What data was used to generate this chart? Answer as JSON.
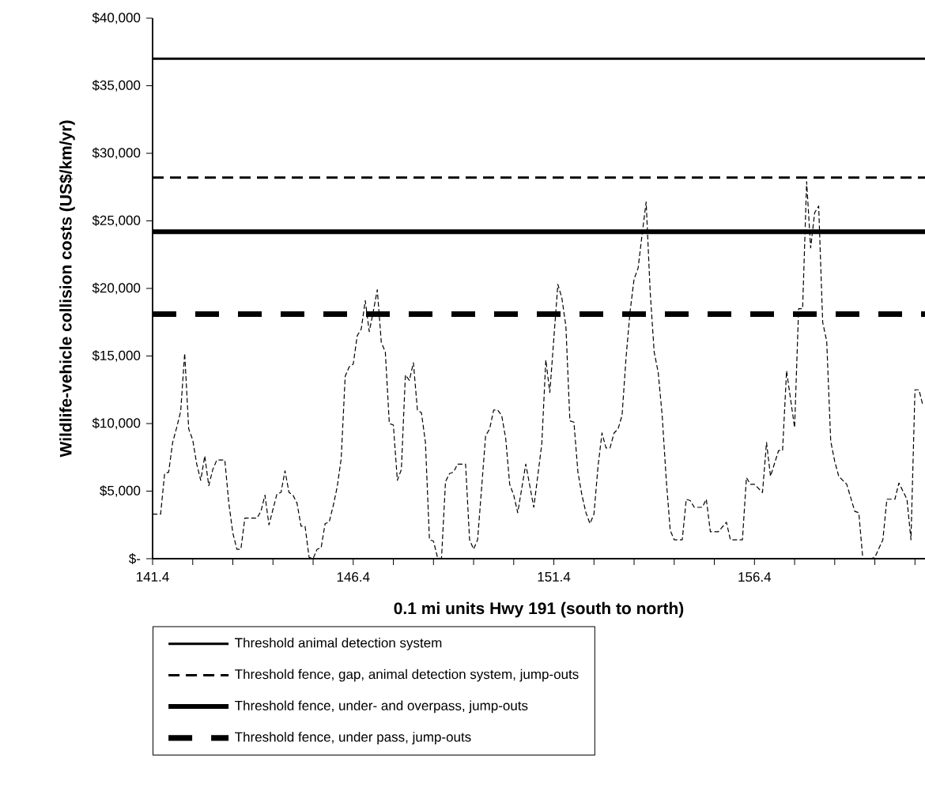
{
  "chart_data": {
    "type": "line",
    "xlabel": "0.1 mi units Hwy 191 (south to north)",
    "ylabel": "Wildlife-vehicle collision costs (US$/km/yr)",
    "xlim": [
      141.4,
      160.65
    ],
    "ylim": [
      0,
      40000
    ],
    "xticks": [
      141.4,
      {
        "value": 142.4,
        "label": null
      },
      {
        "value": 143.4,
        "label": null
      },
      {
        "value": 144.4,
        "label": null
      },
      {
        "value": 145.4,
        "label": null
      },
      146.4,
      {
        "value": 147.4,
        "label": null
      },
      {
        "value": 148.4,
        "label": null
      },
      {
        "value": 149.4,
        "label": null
      },
      {
        "value": 150.4,
        "label": null
      },
      151.4,
      {
        "value": 152.4,
        "label": null
      },
      {
        "value": 153.4,
        "label": null
      },
      {
        "value": 154.4,
        "label": null
      },
      {
        "value": 155.4,
        "label": null
      },
      156.4,
      {
        "value": 157.4,
        "label": null
      },
      {
        "value": 158.4,
        "label": null
      },
      {
        "value": 159.4,
        "label": null
      },
      {
        "value": 160.4,
        "label": null
      }
    ],
    "yticks": [
      {
        "value": 0,
        "label": "$-"
      },
      {
        "value": 5000,
        "label": "$5,000"
      },
      {
        "value": 10000,
        "label": "$10,000"
      },
      {
        "value": 15000,
        "label": "$15,000"
      },
      {
        "value": 20000,
        "label": "$20,000"
      },
      {
        "value": 25000,
        "label": "$25,000"
      },
      {
        "value": 30000,
        "label": "$30,000"
      },
      {
        "value": 35000,
        "label": "$35,000"
      },
      {
        "value": 40000,
        "label": "$40,000"
      }
    ],
    "legend": "bottom",
    "marker": "none",
    "grid": false,
    "series": [
      {
        "color": "#000000",
        "line_style": "dashed",
        "x": [
          141.4,
          141.6,
          141.7,
          141.8,
          141.9,
          142.0,
          142.1,
          142.2,
          142.3,
          142.4,
          142.5,
          142.6,
          142.7,
          142.8,
          142.9,
          143.0,
          143.2,
          143.3,
          143.4,
          143.5,
          143.6,
          143.7,
          144.0,
          144.1,
          144.2,
          144.3,
          144.5,
          144.6,
          144.7,
          144.8,
          144.9,
          145.0,
          145.1,
          145.2,
          145.3,
          145.4,
          145.5,
          145.6,
          145.7,
          145.8,
          145.9,
          146.0,
          146.1,
          146.2,
          146.3,
          146.4,
          146.5,
          146.6,
          146.7,
          146.8,
          146.9,
          147.0,
          147.1,
          147.2,
          147.3,
          147.4,
          147.5,
          147.6,
          147.7,
          147.8,
          147.9,
          148.0,
          148.1,
          148.2,
          148.3,
          148.4,
          148.5,
          148.6,
          148.7,
          148.8,
          148.9,
          149.0,
          149.2,
          149.3,
          149.4,
          149.5,
          149.7,
          149.8,
          149.9,
          150.0,
          150.1,
          150.2,
          150.3,
          150.4,
          150.5,
          150.7,
          150.9,
          151.1,
          151.2,
          151.3,
          151.5,
          151.6,
          151.7,
          151.8,
          151.9,
          152.0,
          152.1,
          152.2,
          152.3,
          152.4,
          152.5,
          152.6,
          152.7,
          152.8,
          152.9,
          153.0,
          153.1,
          153.2,
          153.3,
          153.4,
          153.5,
          153.6,
          153.7,
          153.8,
          153.9,
          154.0,
          154.1,
          154.2,
          154.3,
          154.4,
          154.6,
          154.7,
          154.8,
          154.9,
          155.1,
          155.2,
          155.3,
          155.5,
          155.7,
          155.8,
          156.1,
          156.2,
          156.3,
          156.4,
          156.6,
          156.7,
          156.8,
          157.0,
          157.1,
          157.2,
          157.4,
          157.5,
          157.6,
          157.7,
          157.8,
          157.9,
          158.0,
          158.1,
          158.2,
          158.3,
          158.4,
          158.5,
          158.6,
          158.7,
          158.9,
          159.0,
          159.1,
          159.3,
          159.4,
          159.6,
          159.7,
          159.9,
          160.0,
          160.2,
          160.3,
          160.4,
          160.5,
          160.6
        ],
        "values": [
          3300,
          3300,
          6300,
          6400,
          8600,
          9700,
          10900,
          15200,
          9600,
          8800,
          7000,
          5800,
          7600,
          5400,
          6600,
          7300,
          7300,
          4100,
          1900,
          700,
          700,
          3000,
          3000,
          3500,
          4700,
          2500,
          4800,
          4900,
          6500,
          4900,
          4700,
          4100,
          2400,
          2400,
          100,
          0,
          700,
          800,
          2600,
          2700,
          3900,
          5300,
          7400,
          13500,
          14200,
          14400,
          16500,
          17000,
          19100,
          16800,
          18300,
          19900,
          16000,
          15300,
          10000,
          9900,
          5800,
          6600,
          13600,
          13200,
          14500,
          11000,
          10800,
          8600,
          1400,
          1300,
          100,
          0,
          5700,
          6300,
          6400,
          7000,
          7000,
          1400,
          700,
          1400,
          9100,
          9600,
          11000,
          11000,
          10600,
          8900,
          5500,
          4700,
          3400,
          7000,
          3800,
          8500,
          14700,
          12300,
          20300,
          19300,
          17200,
          10200,
          10100,
          6400,
          4700,
          3400,
          2600,
          3300,
          6800,
          9300,
          8200,
          8200,
          9300,
          9600,
          10600,
          14900,
          18300,
          20700,
          21500,
          24000,
          26400,
          19800,
          15300,
          13800,
          10600,
          5900,
          2100,
          1400,
          1400,
          4400,
          4300,
          3800,
          3800,
          4400,
          2000,
          2000,
          2700,
          1400,
          1400,
          6000,
          5500,
          5500,
          4900,
          8600,
          6100,
          8000,
          8000,
          13900,
          9700,
          18500,
          18500,
          27900,
          23000,
          25600,
          26100,
          17500,
          16100,
          8700,
          7200,
          6100,
          5800,
          5500,
          3500,
          3400,
          0,
          0,
          100,
          1400,
          4400,
          4400,
          5600,
          4400,
          1400,
          12500,
          12500,
          11300
        ]
      }
    ],
    "ref_lines": [
      {
        "axis": "y",
        "value": 37000,
        "label": "Threshold animal detection system",
        "color": "#000000",
        "line_style": "solid"
      },
      {
        "axis": "y",
        "value": 28200,
        "label": "Threshold fence, gap, animal detection system, jump-outs",
        "color": "#000000",
        "line_style": "dashed"
      },
      {
        "axis": "y",
        "value": 24200,
        "label": "Threshold fence, under- and overpass, jump-outs",
        "color": "#000000",
        "line_style": "solid"
      },
      {
        "axis": "y",
        "value": 18100,
        "label": "Threshold fence, under pass, jump-outs",
        "color": "#000000",
        "line_style": "dashed"
      }
    ]
  }
}
